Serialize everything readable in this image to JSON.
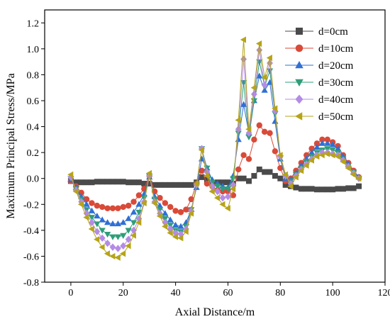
{
  "chart_data": {
    "type": "line",
    "xlabel": "Axial Distance/m",
    "ylabel": "Maximum Principal Stress/MPa",
    "xlim": [
      -10,
      120
    ],
    "ylim": [
      -0.8,
      1.3
    ],
    "xticks": [
      0,
      20,
      40,
      60,
      80,
      100,
      120
    ],
    "yticks": [
      -0.8,
      -0.6,
      -0.4,
      -0.2,
      0.0,
      0.2,
      0.4,
      0.6,
      0.8,
      1.0,
      1.2
    ],
    "xtick_labels": [
      "0",
      "20",
      "40",
      "60",
      "80",
      "100",
      "120"
    ],
    "ytick_labels": [
      "-0.8",
      "-0.6",
      "-0.4",
      "-0.2",
      "0.0",
      "0.2",
      "0.4",
      "0.6",
      "0.8",
      "1.0",
      "1.2"
    ],
    "grid": false,
    "legend_position": "top-right",
    "x": [
      0,
      2,
      4,
      6,
      8,
      10,
      12,
      14,
      16,
      18,
      20,
      22,
      24,
      26,
      28,
      30,
      32,
      34,
      36,
      38,
      40,
      42,
      44,
      46,
      48,
      50,
      52,
      54,
      56,
      58,
      60,
      62,
      64,
      66,
      68,
      70,
      72,
      74,
      76,
      78,
      80,
      82,
      84,
      86,
      88,
      90,
      92,
      94,
      96,
      98,
      100,
      102,
      104,
      106,
      108,
      110
    ],
    "series": [
      {
        "name": "d=0cm",
        "color": "#4a4a4a",
        "marker": "square",
        "values": [
          -0.02,
          -0.03,
          -0.03,
          -0.03,
          -0.03,
          -0.025,
          -0.025,
          -0.025,
          -0.025,
          -0.025,
          -0.025,
          -0.03,
          -0.03,
          -0.03,
          -0.04,
          -0.04,
          -0.05,
          -0.05,
          -0.05,
          -0.05,
          -0.05,
          -0.05,
          -0.05,
          -0.05,
          -0.03,
          0.01,
          -0.01,
          -0.04,
          -0.03,
          -0.03,
          -0.03,
          -0.04,
          0.0,
          0.0,
          -0.02,
          0.02,
          0.07,
          0.05,
          0.05,
          0.02,
          0.0,
          -0.05,
          -0.06,
          -0.07,
          -0.08,
          -0.08,
          -0.08,
          -0.085,
          -0.085,
          -0.085,
          -0.085,
          -0.08,
          -0.08,
          -0.075,
          -0.075,
          -0.06
        ]
      },
      {
        "name": "d=10cm",
        "color": "#d94a38",
        "marker": "circle",
        "values": [
          -0.02,
          -0.06,
          -0.11,
          -0.16,
          -0.19,
          -0.21,
          -0.22,
          -0.23,
          -0.23,
          -0.23,
          -0.22,
          -0.21,
          -0.18,
          -0.13,
          -0.08,
          0.02,
          -0.1,
          -0.15,
          -0.19,
          -0.22,
          -0.25,
          -0.26,
          -0.24,
          -0.16,
          -0.04,
          0.06,
          -0.04,
          -0.06,
          -0.09,
          -0.1,
          -0.1,
          -0.13,
          0.07,
          0.18,
          0.15,
          0.3,
          0.41,
          0.36,
          0.35,
          0.21,
          0.08,
          -0.02,
          0.0,
          0.06,
          0.12,
          0.18,
          0.23,
          0.27,
          0.3,
          0.3,
          0.28,
          0.25,
          0.18,
          0.12,
          0.06,
          0.01
        ]
      },
      {
        "name": "d=20cm",
        "color": "#2f6fd6",
        "marker": "triangle-up",
        "values": [
          -0.01,
          -0.07,
          -0.14,
          -0.2,
          -0.25,
          -0.29,
          -0.32,
          -0.34,
          -0.35,
          -0.35,
          -0.34,
          -0.31,
          -0.26,
          -0.2,
          -0.12,
          0.01,
          -0.14,
          -0.21,
          -0.27,
          -0.32,
          -0.36,
          -0.37,
          -0.34,
          -0.24,
          -0.07,
          0.15,
          0.08,
          -0.01,
          -0.04,
          -0.06,
          -0.07,
          0.02,
          0.3,
          0.57,
          0.35,
          0.6,
          0.79,
          0.68,
          0.74,
          0.44,
          0.15,
          0.0,
          -0.01,
          0.04,
          0.1,
          0.15,
          0.2,
          0.24,
          0.27,
          0.27,
          0.26,
          0.23,
          0.17,
          0.11,
          0.05,
          0.01
        ]
      },
      {
        "name": "d=30cm",
        "color": "#2e9e78",
        "marker": "triangle-down",
        "values": [
          0.0,
          -0.08,
          -0.16,
          -0.24,
          -0.3,
          -0.35,
          -0.4,
          -0.43,
          -0.45,
          -0.45,
          -0.44,
          -0.4,
          -0.34,
          -0.26,
          -0.15,
          0.02,
          -0.16,
          -0.24,
          -0.31,
          -0.36,
          -0.4,
          -0.41,
          -0.37,
          -0.24,
          -0.05,
          0.23,
          0.08,
          -0.03,
          -0.06,
          -0.08,
          -0.08,
          0.0,
          0.35,
          0.74,
          0.32,
          0.6,
          0.9,
          0.71,
          0.83,
          0.5,
          0.16,
          0.01,
          -0.02,
          0.03,
          0.08,
          0.13,
          0.17,
          0.2,
          0.22,
          0.23,
          0.22,
          0.2,
          0.15,
          0.1,
          0.05,
          0.0
        ]
      },
      {
        "name": "d=40cm",
        "color": "#b48be6",
        "marker": "diamond",
        "values": [
          0.01,
          -0.09,
          -0.18,
          -0.27,
          -0.34,
          -0.41,
          -0.46,
          -0.5,
          -0.53,
          -0.54,
          -0.52,
          -0.47,
          -0.4,
          -0.31,
          -0.18,
          0.02,
          -0.18,
          -0.27,
          -0.34,
          -0.39,
          -0.42,
          -0.43,
          -0.39,
          -0.25,
          -0.05,
          0.23,
          0.05,
          -0.06,
          -0.1,
          -0.15,
          -0.14,
          -0.05,
          0.38,
          0.92,
          0.35,
          0.65,
          0.99,
          0.72,
          0.89,
          0.52,
          0.17,
          0.02,
          -0.04,
          0.02,
          0.07,
          0.11,
          0.15,
          0.18,
          0.2,
          0.2,
          0.19,
          0.18,
          0.14,
          0.09,
          0.04,
          0.0
        ]
      },
      {
        "name": "d=50cm",
        "color": "#b6a417",
        "marker": "triangle-left",
        "values": [
          0.03,
          -0.1,
          -0.2,
          -0.3,
          -0.39,
          -0.47,
          -0.53,
          -0.58,
          -0.6,
          -0.61,
          -0.58,
          -0.52,
          -0.44,
          -0.34,
          -0.19,
          0.04,
          -0.19,
          -0.29,
          -0.37,
          -0.42,
          -0.45,
          -0.46,
          -0.41,
          -0.27,
          -0.04,
          0.22,
          0.02,
          -0.1,
          -0.15,
          -0.2,
          -0.23,
          -0.08,
          0.45,
          1.07,
          0.38,
          0.7,
          1.04,
          0.78,
          0.93,
          0.54,
          0.18,
          0.03,
          -0.06,
          0.01,
          0.06,
          0.1,
          0.14,
          0.17,
          0.18,
          0.19,
          0.18,
          0.17,
          0.13,
          0.08,
          0.03,
          0.0
        ]
      }
    ]
  }
}
